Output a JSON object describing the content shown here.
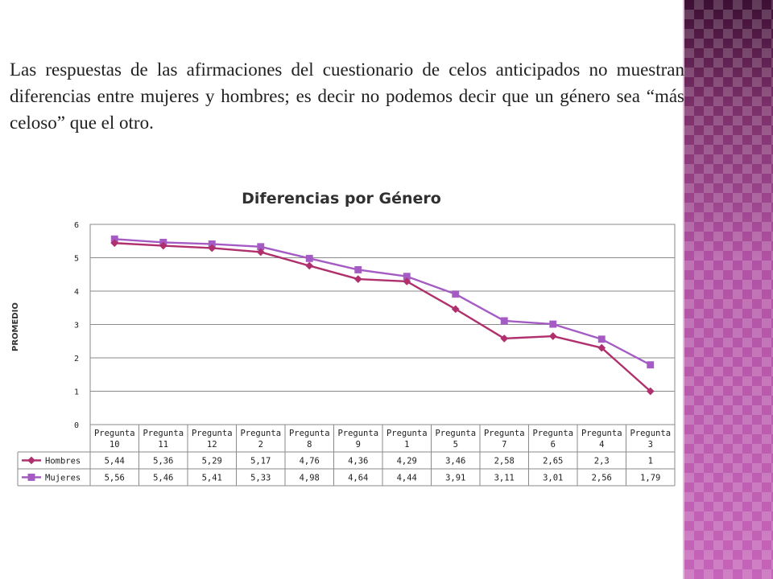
{
  "intro_text": "Las respuestas de las afirmaciones del cuestionario de celos anticipados no muestran diferencias entre mujeres y hombres; es decir no podemos decir que un género sea “más celoso” que el otro.",
  "colors": {
    "hombres": "#b0306d",
    "mujeres": "#a45cc4",
    "panel": "#6e2a5c"
  },
  "chart_data": {
    "type": "line",
    "title": "Diferencias por Género",
    "xlabel": "",
    "ylabel": "PROMEDIO",
    "ylim": [
      0,
      6
    ],
    "yticks": [
      0,
      1,
      2,
      3,
      4,
      5,
      6
    ],
    "grid": true,
    "legend": "data-table",
    "categories": [
      [
        "Pregunta",
        "10"
      ],
      [
        "Pregunta",
        "11"
      ],
      [
        "Pregunta",
        "12"
      ],
      [
        "Pregunta",
        "2"
      ],
      [
        "Pregunta",
        "8"
      ],
      [
        "Pregunta",
        "9"
      ],
      [
        "Pregunta",
        "1"
      ],
      [
        "Pregunta",
        "5"
      ],
      [
        "Pregunta",
        "7"
      ],
      [
        "Pregunta",
        "6"
      ],
      [
        "Pregunta",
        "4"
      ],
      [
        "Pregunta",
        "3"
      ]
    ],
    "series": [
      {
        "name": "Hombres",
        "marker": "diamond",
        "values": [
          5.44,
          5.36,
          5.29,
          5.17,
          4.76,
          4.36,
          4.29,
          3.46,
          2.58,
          2.65,
          2.3,
          1
        ],
        "labels": [
          "5,44",
          "5,36",
          "5,29",
          "5,17",
          "4,76",
          "4,36",
          "4,29",
          "3,46",
          "2,58",
          "2,65",
          "2,3",
          "1"
        ]
      },
      {
        "name": "Mujeres",
        "marker": "square",
        "values": [
          5.56,
          5.46,
          5.41,
          5.33,
          4.98,
          4.64,
          4.44,
          3.91,
          3.11,
          3.01,
          2.56,
          1.79
        ],
        "labels": [
          "5,56",
          "5,46",
          "5,41",
          "5,33",
          "4,98",
          "4,64",
          "4,44",
          "3,91",
          "3,11",
          "3,01",
          "2,56",
          "1,79"
        ]
      }
    ]
  }
}
